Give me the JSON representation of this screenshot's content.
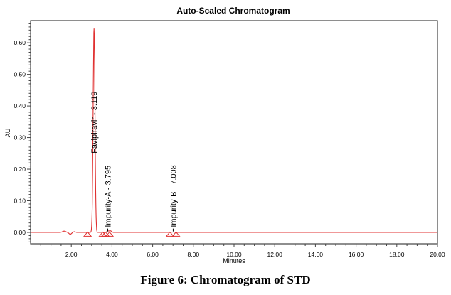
{
  "chart_data": {
    "type": "line",
    "title": "Auto-Scaled Chromatogram",
    "xlabel": "Minutes",
    "ylabel": "AU",
    "xlim": [
      0,
      20
    ],
    "ylim": [
      -0.036,
      0.67
    ],
    "x_ticks": [
      "2.00",
      "4.00",
      "6.00",
      "8.00",
      "10.00",
      "12.00",
      "14.00",
      "16.00",
      "18.00",
      "20.00"
    ],
    "y_ticks": [
      "0.00",
      "0.10",
      "0.20",
      "0.30",
      "0.40",
      "0.50",
      "0.60"
    ],
    "grid": false,
    "line_color": "#e03030",
    "peaks": [
      {
        "name": "Favipiravir",
        "rt": 3.119,
        "height": 0.645,
        "label": "Favipiravir - 3.119"
      },
      {
        "name": "Impurity-A",
        "rt": 3.795,
        "height": 0.004,
        "label": "Impurity-A - 3.795"
      },
      {
        "name": "Impurity-B",
        "rt": 7.008,
        "height": 0.001,
        "label": "Impurity-B - 7.008"
      }
    ],
    "integration_markers_min": [
      2.8,
      3.55,
      3.68,
      3.88,
      6.85,
      7.15
    ]
  },
  "caption": "Figure 6: Chromatogram of STD"
}
